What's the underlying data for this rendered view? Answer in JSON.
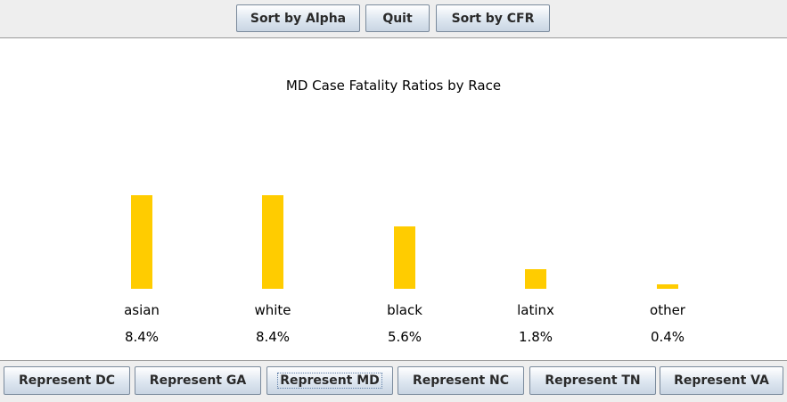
{
  "toolbar": {
    "sort_alpha_label": "Sort by Alpha",
    "quit_label": "Quit",
    "sort_cfr_label": "Sort by CFR"
  },
  "chart_data": {
    "type": "bar",
    "title": "MD Case Fatality Ratios by Race",
    "categories": [
      "asian",
      "white",
      "black",
      "latinx",
      "other"
    ],
    "values": [
      8.4,
      8.4,
      5.6,
      1.8,
      0.4
    ],
    "value_labels": [
      "8.4%",
      "8.4%",
      "5.6%",
      "1.8%",
      "0.4%"
    ],
    "unit": "%",
    "ylim": [
      0,
      8.4
    ],
    "bar_color": "#ffcc00",
    "grid": false,
    "xlabel": "",
    "ylabel": ""
  },
  "bottom_bar": {
    "buttons": [
      {
        "label": "Represent DC",
        "focused": false
      },
      {
        "label": "Represent GA",
        "focused": false
      },
      {
        "label": "Represent MD",
        "focused": true
      },
      {
        "label": "Represent NC",
        "focused": false
      },
      {
        "label": "Represent TN",
        "focused": false
      },
      {
        "label": "Represent VA",
        "focused": false
      }
    ]
  }
}
